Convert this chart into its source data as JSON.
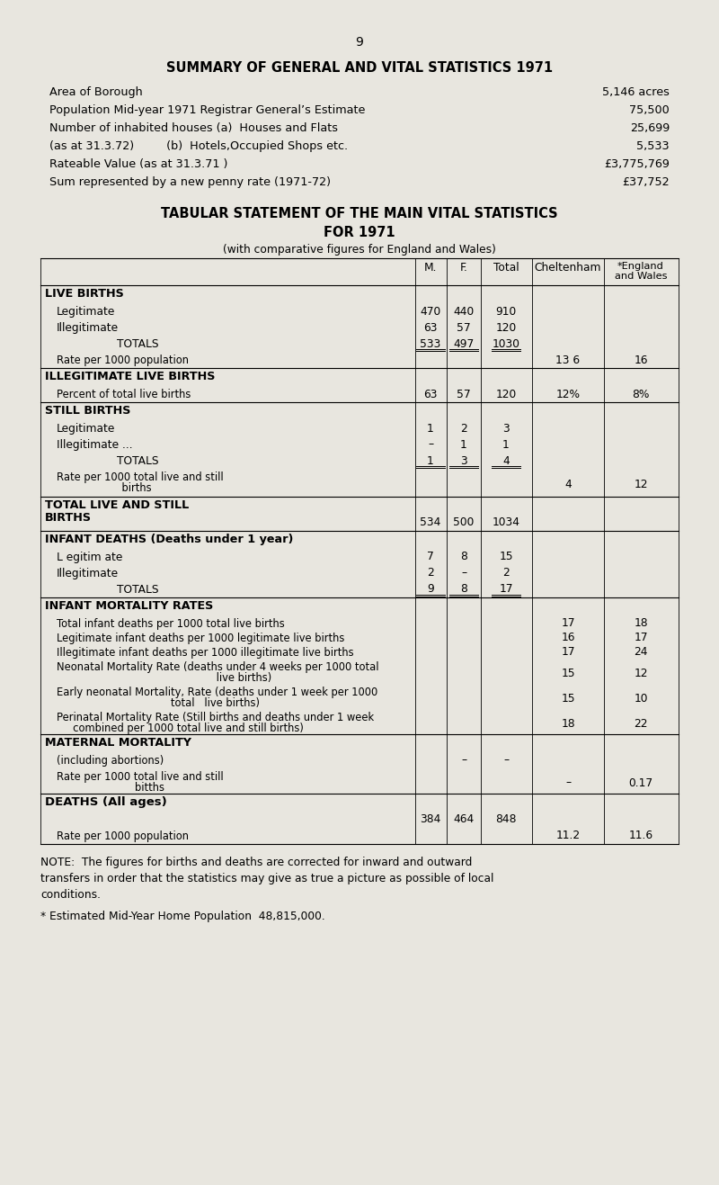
{
  "page_number": "9",
  "bg_color": "#e8e6df",
  "title1": "SUMMARY OF GENERAL AND VITAL STATISTICS 1971",
  "summary_rows": [
    [
      "Area of Borough",
      "5,146 acres"
    ],
    [
      "Population Mid-year 1971 Registrar General’s Estimate",
      "75,500"
    ],
    [
      "Number of inhabited houses (a)  Houses and Flats",
      "25,699"
    ],
    [
      "(as at 31.3.72)         (b)  Hotels,Occupied Shops etc.",
      "5,533"
    ],
    [
      "Rateable Value (as at 31.3.71 )",
      "£3,775,769"
    ],
    [
      "Sum represented by a new penny rate (1971-72)",
      "£37,752"
    ]
  ],
  "table_title1": "TABULAR STATEMENT OF THE MAIN VITAL STATISTICS",
  "table_title2": "FOR 1971",
  "table_subtitle": "(with comparative figures for England and Wales)",
  "note": "NOTE:  The figures for births and deaths are corrected for inward and outward\ntransfers in order that the statistics may give as true a picture as possible of local\nconditions.",
  "footnote": "* Estimated Mid-Year Home Population  48,815,000."
}
